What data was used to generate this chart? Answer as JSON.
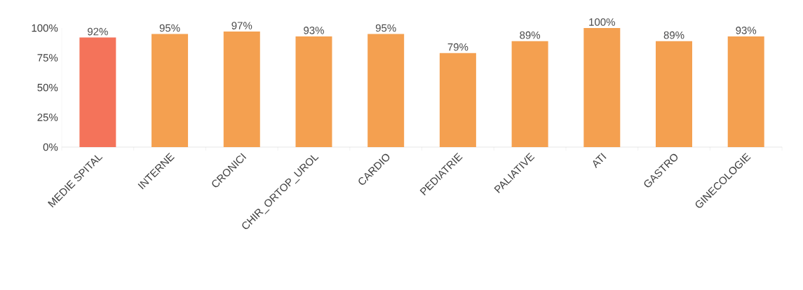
{
  "chart_data": {
    "type": "bar",
    "categories": [
      "MEDIE SPITAL",
      "INTERNE",
      "CRONICI",
      "CHIR_ORTOP_UROL",
      "CARDIO",
      "PEDIATRIE",
      "PALIATIVE",
      "ATI",
      "GASTRO",
      "GINECOLOGIE"
    ],
    "values": [
      92,
      95,
      97,
      93,
      95,
      79,
      89,
      100,
      89,
      93
    ],
    "value_labels": [
      "92%",
      "95%",
      "97%",
      "93%",
      "95%",
      "79%",
      "89%",
      "100%",
      "89%",
      "93%"
    ],
    "colors": [
      "#f4735a",
      "#f4a050",
      "#f4a050",
      "#f4a050",
      "#f4a050",
      "#f4a050",
      "#f4a050",
      "#f4a050",
      "#f4a050",
      "#f4a050"
    ],
    "ylim": [
      0,
      100
    ],
    "yticks": [
      {
        "value": 0,
        "label": "0%"
      },
      {
        "value": 25,
        "label": "25%"
      },
      {
        "value": 50,
        "label": "50%"
      },
      {
        "value": 75,
        "label": "75%"
      },
      {
        "value": 100,
        "label": "100%"
      }
    ]
  }
}
